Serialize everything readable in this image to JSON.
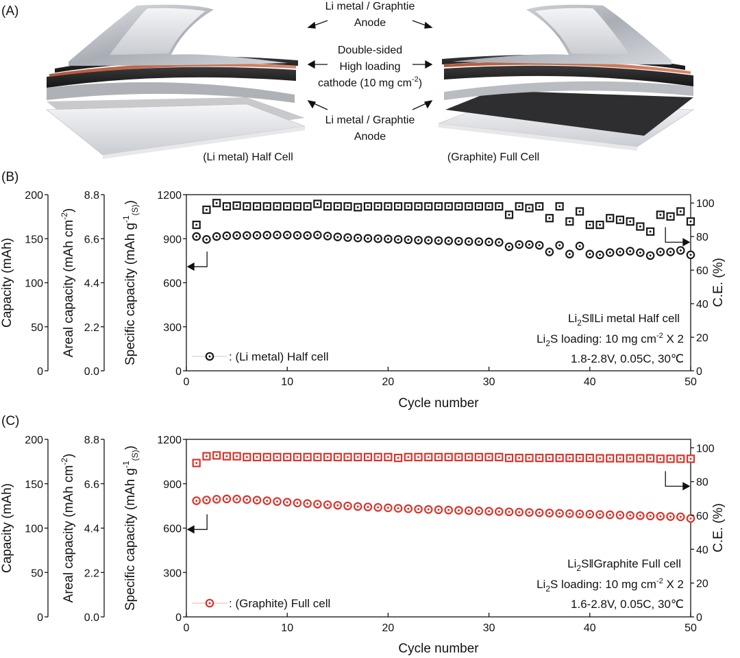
{
  "figure": {
    "panel_a": {
      "label": "(A)",
      "anode_top": [
        "Li metal / Graphtie",
        "Anode"
      ],
      "cathode": [
        "Double-sided",
        "High loading",
        "cathode (10 mg cm",
        "-2",
        ")"
      ],
      "anode_bottom": [
        "Li metal / Graphtie",
        "Anode"
      ],
      "caption_left": "(Li metal) Half Cell",
      "caption_right": "(Graphite) Full Cell"
    },
    "colors": {
      "half": "#1a1a1a",
      "full": "#d9342b"
    }
  },
  "chart_data": [
    {
      "type": "scatter",
      "panel": "(B)",
      "xlabel": "Cycle number",
      "xlim": [
        0,
        50
      ],
      "xticks": [
        0,
        10,
        20,
        30,
        40,
        50
      ],
      "y_axes": [
        {
          "label": "Capacity (mAh)",
          "ticks": [
            "0",
            "50",
            "100",
            "150",
            "200"
          ]
        },
        {
          "label": "Areal capacity (mAh cm",
          "sup": "-2",
          "close": ")",
          "ticks": [
            "0.0",
            "2.2",
            "4.4",
            "6.6",
            "8.8"
          ]
        },
        {
          "label": "Specific capacity (mAh g",
          "sup": "-1",
          "sub": "(S)",
          "close": ")",
          "ticks": [
            "0",
            "300",
            "600",
            "900",
            "1200"
          ]
        }
      ],
      "ylim": [
        0,
        1200
      ],
      "y2label": "C.E. (%)",
      "y2lim": [
        0,
        105
      ],
      "y2ticks": [
        "0",
        "20",
        "40",
        "60",
        "80",
        "100"
      ],
      "legend": {
        "label": ": (Li metal) Half cell",
        "position": "bottom-left"
      },
      "annotation": {
        "line1_pre": "Li",
        "line1_sub": "2",
        "line1_post": "S‖Li metal Half cell",
        "line2_pre": "Li",
        "line2_sub": "2",
        "line2_mid": "S loading: 10 mg cm",
        "line2_sup": "-2",
        "line2_post": " X 2",
        "line3": "1.8-2.8V, 0.05C, 30℃"
      },
      "x": [
        1,
        2,
        3,
        4,
        5,
        6,
        7,
        8,
        9,
        10,
        11,
        12,
        13,
        14,
        15,
        16,
        17,
        18,
        19,
        20,
        21,
        22,
        23,
        24,
        25,
        26,
        27,
        28,
        29,
        30,
        31,
        32,
        33,
        34,
        35,
        36,
        37,
        38,
        39,
        40,
        41,
        42,
        43,
        44,
        45,
        46,
        47,
        48,
        49,
        50
      ],
      "series": [
        {
          "name": "(Li metal) Half cell",
          "axis": "left",
          "marker": "circle-dot",
          "values": [
            915,
            895,
            915,
            920,
            922,
            922,
            923,
            924,
            925,
            925,
            923,
            922,
            925,
            918,
            912,
            908,
            905,
            902,
            900,
            898,
            895,
            893,
            890,
            889,
            887,
            885,
            883,
            881,
            880,
            878,
            875,
            845,
            860,
            860,
            855,
            810,
            855,
            795,
            850,
            795,
            790,
            805,
            810,
            815,
            805,
            785,
            810,
            810,
            820,
            790
          ]
        },
        {
          "name": "C.E.",
          "axis": "right",
          "marker": "square-dot",
          "values": [
            87,
            96,
            100,
            98,
            98.5,
            98,
            98,
            98,
            98,
            98,
            98,
            98,
            99.5,
            98,
            98,
            98,
            97.5,
            98,
            98,
            98,
            98,
            98,
            98,
            98,
            98,
            98,
            98,
            98,
            98,
            98,
            98,
            93,
            98,
            97,
            98,
            91,
            98,
            89,
            95,
            87,
            87,
            91,
            90,
            89,
            86,
            83,
            93,
            92,
            95,
            89
          ]
        }
      ]
    },
    {
      "type": "scatter",
      "panel": "(C)",
      "xlabel": "Cycle number",
      "xlim": [
        0,
        50
      ],
      "xticks": [
        0,
        10,
        20,
        30,
        40,
        50
      ],
      "y_axes": [
        {
          "label": "Capacity (mAh)",
          "ticks": [
            "0",
            "50",
            "100",
            "150",
            "200"
          ]
        },
        {
          "label": "Areal capacity (mAh cm",
          "sup": "-2",
          "close": ")",
          "ticks": [
            "0.0",
            "2.2",
            "4.4",
            "6.6",
            "8.8"
          ]
        },
        {
          "label": "Specific capacity (mAh g",
          "sup": "-1",
          "sub": "(S)",
          "close": ")",
          "ticks": [
            "0",
            "300",
            "600",
            "900",
            "1200"
          ]
        }
      ],
      "ylim": [
        0,
        1200
      ],
      "y2label": "C.E. (%)",
      "y2lim": [
        0,
        105
      ],
      "y2ticks": [
        "0",
        "20",
        "40",
        "60",
        "80",
        "100"
      ],
      "legend": {
        "label": ": (Graphite) Full cell",
        "position": "bottom-left"
      },
      "annotation": {
        "line1_pre": "Li",
        "line1_sub": "2",
        "line1_post": "S‖Graphite Full cell",
        "line2_pre": "Li",
        "line2_sub": "2",
        "line2_mid": "S loading: 10 mg cm",
        "line2_sup": "-2",
        "line2_post": " X 2",
        "line3": "1.6-2.8V, 0.05C, 30℃"
      },
      "x": [
        1,
        2,
        3,
        4,
        5,
        6,
        7,
        8,
        9,
        10,
        11,
        12,
        13,
        14,
        15,
        16,
        17,
        18,
        19,
        20,
        21,
        22,
        23,
        24,
        25,
        26,
        27,
        28,
        29,
        30,
        31,
        32,
        33,
        34,
        35,
        36,
        37,
        38,
        39,
        40,
        41,
        42,
        43,
        44,
        45,
        46,
        47,
        48,
        49,
        50
      ],
      "series": [
        {
          "name": "(Graphite) Full cell",
          "axis": "left",
          "marker": "circle-dot",
          "values": [
            785,
            790,
            795,
            797,
            796,
            793,
            789,
            785,
            780,
            775,
            770,
            766,
            762,
            758,
            754,
            750,
            746,
            743,
            740,
            737,
            734,
            731,
            728,
            726,
            724,
            722,
            720,
            718,
            716,
            714,
            712,
            710,
            708,
            706,
            704,
            702,
            700,
            698,
            696,
            694,
            692,
            690,
            688,
            686,
            684,
            682,
            680,
            678,
            676,
            665
          ]
        },
        {
          "name": "C.E.",
          "axis": "right",
          "marker": "square-dot",
          "values": [
            91,
            95,
            95.5,
            95,
            95,
            94.5,
            94.5,
            94.5,
            94.5,
            94.5,
            94.5,
            94.5,
            94.5,
            94.5,
            94.5,
            94.5,
            94.5,
            94.5,
            94.5,
            94.5,
            94,
            94.5,
            94.5,
            94.5,
            94.5,
            94.5,
            94.5,
            94.5,
            94.5,
            94.5,
            94.5,
            94,
            94,
            94,
            94,
            94,
            94,
            94,
            94,
            94,
            93.8,
            93.8,
            93.8,
            93.8,
            93.8,
            93.8,
            93.5,
            93.5,
            93.5,
            93.5
          ]
        }
      ]
    }
  ]
}
